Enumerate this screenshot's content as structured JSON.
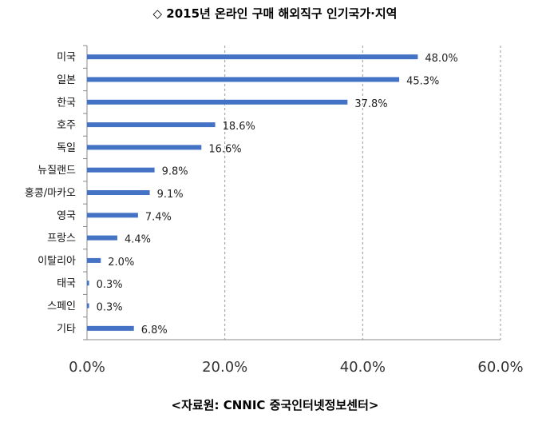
{
  "chart_data": {
    "type": "bar",
    "orientation": "horizontal",
    "title": "◇ 2015년 온라인 구매 해외직구 인기국가·지역",
    "source": "<자료원: CNNIC 중국인터넷정보센터>",
    "categories": [
      "미국",
      "일본",
      "한국",
      "호주",
      "독일",
      "뉴질랜드",
      "홍콩/마카오",
      "영국",
      "프랑스",
      "이탈리아",
      "태국",
      "스페인",
      "기타"
    ],
    "values": [
      48.0,
      45.3,
      37.8,
      18.6,
      16.6,
      9.8,
      9.1,
      7.4,
      4.4,
      2.0,
      0.3,
      0.3,
      6.8
    ],
    "value_labels": [
      "48.0%",
      "45.3%",
      "37.8%",
      "18.6%",
      "16.6%",
      "9.8%",
      "9.1%",
      "7.4%",
      "4.4%",
      "2.0%",
      "0.3%",
      "0.3%",
      "6.8%"
    ],
    "xlim": [
      0,
      60
    ],
    "xticks": [
      "0.0%",
      "20.0%",
      "40.0%",
      "60.0%"
    ],
    "grid": true,
    "grid_style": "dashed vertical",
    "bar_color": "#4472C4",
    "legend": "none"
  }
}
